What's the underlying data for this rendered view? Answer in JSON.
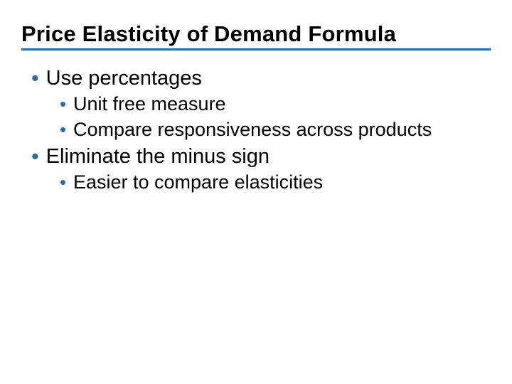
{
  "slide": {
    "title": "Price Elasticity of Demand Formula",
    "title_color": "#000000",
    "title_fontsize": 31,
    "underline_color": "#2a6aa4",
    "bullet_color": "#2a6aa4",
    "body_text_color": "#000000",
    "background_color": "#ffffff",
    "lvl1_fontsize": 29,
    "lvl2_fontsize": 27,
    "items": [
      {
        "text": "Use percentages",
        "children": [
          {
            "text": "Unit free measure"
          },
          {
            "text": "Compare responsiveness across products"
          }
        ]
      },
      {
        "text": "Eliminate the minus sign",
        "children": [
          {
            "text": "Easier to compare elasticities"
          }
        ]
      }
    ]
  }
}
